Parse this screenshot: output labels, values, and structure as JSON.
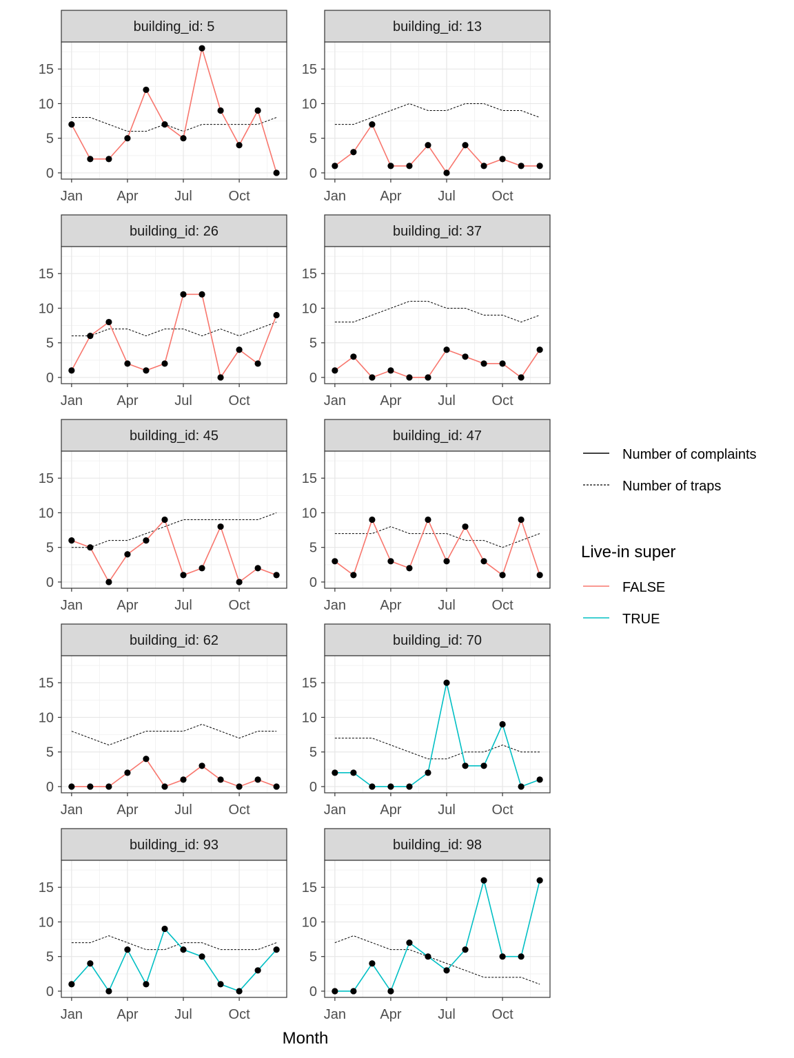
{
  "chart_data": {
    "type": "line",
    "facet_label_prefix": "building_id: ",
    "xlabel": "Month",
    "ylabel": "",
    "x": [
      1,
      2,
      3,
      4,
      5,
      6,
      7,
      8,
      9,
      10,
      11,
      12
    ],
    "x_ticks": [
      {
        "value": 1,
        "label": "Jan"
      },
      {
        "value": 4,
        "label": "Apr"
      },
      {
        "value": 7,
        "label": "Jul"
      },
      {
        "value": 10,
        "label": "Oct"
      }
    ],
    "ylim": [
      0,
      18
    ],
    "y_ticks": [
      0,
      5,
      10,
      15
    ],
    "grid": true,
    "colors": {
      "FALSE": "#F8766D",
      "TRUE": "#00BFC4",
      "points": "#000000",
      "traps": "#000000"
    },
    "legend": {
      "placement": "right",
      "linetype_entries": [
        {
          "label": "Number of complaints",
          "style": "solid"
        },
        {
          "label": "Number of traps",
          "style": "dashed"
        }
      ],
      "color_title": "Live-in super",
      "color_entries": [
        {
          "label": "FALSE",
          "key": "FALSE"
        },
        {
          "label": "TRUE",
          "key": "TRUE"
        }
      ]
    },
    "panels": [
      {
        "building_id": "5",
        "live_in_super": "FALSE",
        "complaints": [
          7,
          2,
          2,
          5,
          12,
          7,
          5,
          18,
          9,
          4,
          9,
          0
        ],
        "traps": [
          8,
          8,
          7,
          6,
          6,
          7,
          6,
          7,
          7,
          7,
          7,
          8
        ]
      },
      {
        "building_id": "13",
        "live_in_super": "FALSE",
        "complaints": [
          1,
          3,
          7,
          1,
          1,
          4,
          0,
          4,
          1,
          2,
          1,
          1
        ],
        "traps": [
          7,
          7,
          8,
          9,
          10,
          9,
          9,
          10,
          10,
          9,
          9,
          8
        ]
      },
      {
        "building_id": "26",
        "live_in_super": "FALSE",
        "complaints": [
          1,
          6,
          8,
          2,
          1,
          2,
          12,
          12,
          0,
          4,
          2,
          9
        ],
        "traps": [
          6,
          6,
          7,
          7,
          6,
          7,
          7,
          6,
          7,
          6,
          7,
          8
        ]
      },
      {
        "building_id": "37",
        "live_in_super": "FALSE",
        "complaints": [
          1,
          3,
          0,
          1,
          0,
          0,
          4,
          3,
          2,
          2,
          0,
          4
        ],
        "traps": [
          8,
          8,
          9,
          10,
          11,
          11,
          10,
          10,
          9,
          9,
          8,
          9
        ]
      },
      {
        "building_id": "45",
        "live_in_super": "FALSE",
        "complaints": [
          6,
          5,
          0,
          4,
          6,
          9,
          1,
          2,
          8,
          0,
          2,
          1
        ],
        "traps": [
          5,
          5,
          6,
          6,
          7,
          8,
          9,
          9,
          9,
          9,
          9,
          10
        ]
      },
      {
        "building_id": "47",
        "live_in_super": "FALSE",
        "complaints": [
          3,
          1,
          9,
          3,
          2,
          9,
          3,
          8,
          3,
          1,
          9,
          1
        ],
        "traps": [
          7,
          7,
          7,
          8,
          7,
          7,
          7,
          6,
          6,
          5,
          6,
          7
        ]
      },
      {
        "building_id": "62",
        "live_in_super": "FALSE",
        "complaints": [
          0,
          0,
          0,
          2,
          4,
          0,
          1,
          3,
          1,
          0,
          1,
          0
        ],
        "traps": [
          8,
          7,
          6,
          7,
          8,
          8,
          8,
          9,
          8,
          7,
          8,
          8
        ]
      },
      {
        "building_id": "70",
        "live_in_super": "TRUE",
        "complaints": [
          2,
          2,
          0,
          0,
          0,
          2,
          15,
          3,
          3,
          9,
          0,
          1
        ],
        "traps": [
          7,
          7,
          7,
          6,
          5,
          4,
          4,
          5,
          5,
          6,
          5,
          5
        ]
      },
      {
        "building_id": "93",
        "live_in_super": "TRUE",
        "complaints": [
          1,
          4,
          0,
          6,
          1,
          9,
          6,
          5,
          1,
          0,
          3,
          6
        ],
        "traps": [
          7,
          7,
          8,
          7,
          6,
          6,
          7,
          7,
          6,
          6,
          6,
          7
        ]
      },
      {
        "building_id": "98",
        "live_in_super": "TRUE",
        "complaints": [
          0,
          0,
          4,
          0,
          7,
          5,
          3,
          6,
          16,
          5,
          5,
          16
        ],
        "traps": [
          7,
          8,
          7,
          6,
          6,
          5,
          4,
          3,
          2,
          2,
          2,
          1
        ]
      }
    ]
  }
}
